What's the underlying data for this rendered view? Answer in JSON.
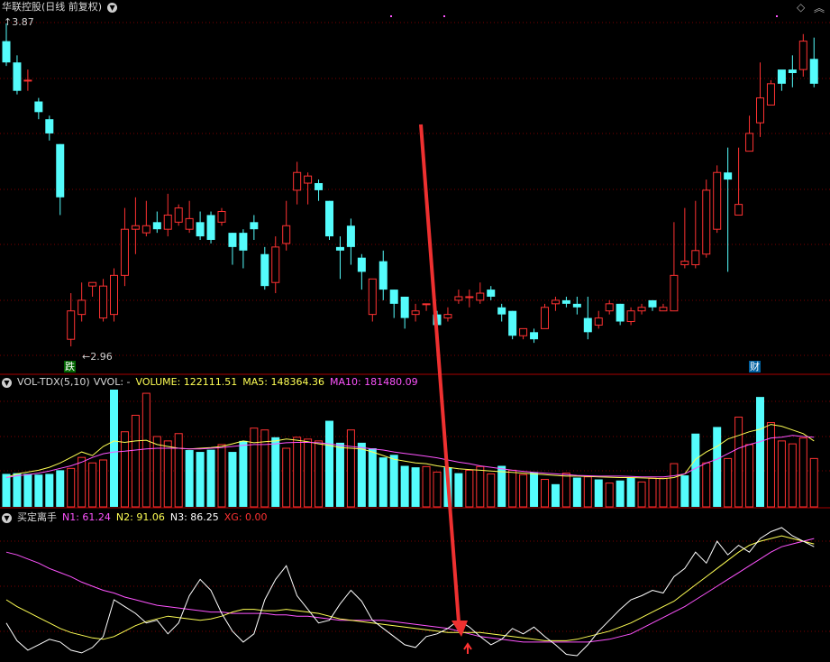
{
  "main": {
    "title": "华联控股(日线 前复权)",
    "high_label": "3.87",
    "low_label": "2.96",
    "badge_left": "跌",
    "badge_right": "财",
    "candles": [
      [
        3.82,
        3.76,
        3.87,
        3.75
      ],
      [
        3.76,
        3.68,
        3.78,
        3.67
      ],
      [
        3.71,
        3.71,
        3.74,
        3.68
      ],
      [
        3.65,
        3.62,
        3.66,
        3.6
      ],
      [
        3.6,
        3.56,
        3.61,
        3.54
      ],
      [
        3.53,
        3.38,
        3.53,
        3.33
      ],
      [
        2.98,
        3.06,
        3.11,
        2.96
      ],
      [
        3.05,
        3.09,
        3.14,
        3.03
      ],
      [
        3.13,
        3.14,
        3.14,
        3.1
      ],
      [
        3.04,
        3.13,
        3.15,
        3.03
      ],
      [
        3.05,
        3.16,
        3.18,
        3.03
      ],
      [
        3.16,
        3.29,
        3.35,
        3.13
      ],
      [
        3.29,
        3.3,
        3.38,
        3.22
      ],
      [
        3.28,
        3.3,
        3.37,
        3.27
      ],
      [
        3.31,
        3.29,
        3.34,
        3.28
      ],
      [
        3.29,
        3.33,
        3.39,
        3.27
      ],
      [
        3.31,
        3.35,
        3.36,
        3.3
      ],
      [
        3.29,
        3.32,
        3.37,
        3.28
      ],
      [
        3.31,
        3.27,
        3.34,
        3.26
      ],
      [
        3.33,
        3.26,
        3.34,
        3.25
      ],
      [
        3.31,
        3.34,
        3.35,
        3.3
      ],
      [
        3.28,
        3.24,
        3.28,
        3.19
      ],
      [
        3.28,
        3.23,
        3.29,
        3.18
      ],
      [
        3.31,
        3.29,
        3.33,
        3.26
      ],
      [
        3.22,
        3.13,
        3.24,
        3.12
      ],
      [
        3.14,
        3.24,
        3.27,
        3.11
      ],
      [
        3.25,
        3.3,
        3.37,
        3.23
      ],
      [
        3.4,
        3.45,
        3.48,
        3.36
      ],
      [
        3.42,
        3.44,
        3.45,
        3.36
      ],
      [
        3.42,
        3.4,
        3.43,
        3.37
      ],
      [
        3.37,
        3.27,
        3.37,
        3.26
      ],
      [
        3.24,
        3.23,
        3.27,
        3.15
      ],
      [
        3.3,
        3.24,
        3.32,
        3.19
      ],
      [
        3.21,
        3.17,
        3.22,
        3.12
      ],
      [
        3.05,
        3.15,
        3.15,
        3.03
      ],
      [
        3.2,
        3.12,
        3.23,
        3.09
      ],
      [
        3.12,
        3.08,
        3.12,
        3.04
      ],
      [
        3.1,
        3.04,
        3.1,
        3.01
      ],
      [
        3.05,
        3.06,
        3.08,
        3.03
      ],
      [
        3.08,
        3.08,
        3.08,
        3.06
      ],
      [
        3.05,
        3.02,
        3.06,
        2.97
      ],
      [
        3.04,
        3.05,
        3.07,
        3.03
      ],
      [
        3.09,
        3.1,
        3.12,
        3.08
      ],
      [
        3.1,
        3.1,
        3.12,
        3.07
      ],
      [
        3.09,
        3.11,
        3.14,
        3.08
      ],
      [
        3.12,
        3.1,
        3.13,
        3.09
      ],
      [
        3.07,
        3.05,
        3.08,
        3.03
      ],
      [
        3.06,
        2.99,
        3.06,
        2.98
      ],
      [
        2.99,
        3.01,
        3.01,
        2.98
      ],
      [
        3.0,
        2.98,
        3.01,
        2.97
      ],
      [
        3.01,
        3.07,
        3.08,
        3.01
      ],
      [
        3.08,
        3.09,
        3.1,
        3.06
      ],
      [
        3.09,
        3.08,
        3.1,
        3.07
      ],
      [
        3.08,
        3.07,
        3.1,
        3.05
      ],
      [
        3.04,
        3.0,
        3.1,
        2.98
      ],
      [
        3.02,
        3.04,
        3.06,
        3.01
      ],
      [
        3.06,
        3.08,
        3.09,
        3.05
      ],
      [
        3.08,
        3.03,
        3.08,
        3.02
      ],
      [
        3.03,
        3.06,
        3.07,
        3.02
      ],
      [
        3.06,
        3.07,
        3.08,
        3.05
      ],
      [
        3.09,
        3.07,
        3.09,
        3.06
      ],
      [
        3.06,
        3.07,
        3.08,
        3.06
      ],
      [
        3.06,
        3.16,
        3.31,
        3.06
      ],
      [
        3.19,
        3.2,
        3.35,
        3.18
      ],
      [
        3.19,
        3.23,
        3.37,
        3.18
      ],
      [
        3.22,
        3.4,
        3.43,
        3.21
      ],
      [
        3.29,
        3.45,
        3.47,
        3.28
      ],
      [
        3.45,
        3.43,
        3.52,
        3.17
      ],
      [
        3.33,
        3.36,
        3.52,
        3.33
      ],
      [
        3.51,
        3.56,
        3.61,
        3.51
      ],
      [
        3.59,
        3.66,
        3.76,
        3.55
      ],
      [
        3.64,
        3.7,
        3.71,
        3.65
      ],
      [
        3.74,
        3.7,
        3.73,
        3.68
      ],
      [
        3.74,
        3.73,
        3.78,
        3.69
      ],
      [
        3.74,
        3.82,
        3.84,
        3.72
      ],
      [
        3.77,
        3.7,
        3.83,
        3.69
      ]
    ]
  },
  "vol": {
    "indicator": "VOL-TDX(5,10)",
    "vvol": "VVOL: -",
    "volume_label": "VOLUME: 122111.51",
    "ma5_label": "MA5: 148364.36",
    "ma10_label": "MA10: 181480.09",
    "bars": [
      [
        90,
        0
      ],
      [
        92,
        0
      ],
      [
        90,
        0
      ],
      [
        88,
        0
      ],
      [
        90,
        0
      ],
      [
        100,
        0
      ],
      [
        105,
        1
      ],
      [
        135,
        1
      ],
      [
        120,
        1
      ],
      [
        128,
        1
      ],
      [
        320,
        0
      ],
      [
        205,
        1
      ],
      [
        250,
        1
      ],
      [
        310,
        1
      ],
      [
        192,
        1
      ],
      [
        180,
        1
      ],
      [
        200,
        1
      ],
      [
        155,
        0
      ],
      [
        150,
        0
      ],
      [
        156,
        0
      ],
      [
        170,
        1
      ],
      [
        150,
        0
      ],
      [
        180,
        0
      ],
      [
        215,
        1
      ],
      [
        210,
        1
      ],
      [
        190,
        0
      ],
      [
        160,
        1
      ],
      [
        190,
        1
      ],
      [
        185,
        1
      ],
      [
        180,
        1
      ],
      [
        235,
        0
      ],
      [
        175,
        0
      ],
      [
        210,
        1
      ],
      [
        175,
        0
      ],
      [
        160,
        0
      ],
      [
        135,
        0
      ],
      [
        142,
        0
      ],
      [
        112,
        0
      ],
      [
        108,
        0
      ],
      [
        110,
        1
      ],
      [
        95,
        1
      ],
      [
        108,
        0
      ],
      [
        92,
        0
      ],
      [
        100,
        1
      ],
      [
        110,
        1
      ],
      [
        90,
        1
      ],
      [
        112,
        0
      ],
      [
        100,
        1
      ],
      [
        88,
        1
      ],
      [
        95,
        0
      ],
      [
        75,
        1
      ],
      [
        62,
        0
      ],
      [
        92,
        1
      ],
      [
        80,
        0
      ],
      [
        82,
        1
      ],
      [
        75,
        0
      ],
      [
        65,
        1
      ],
      [
        72,
        0
      ],
      [
        80,
        0
      ],
      [
        68,
        1
      ],
      [
        78,
        1
      ],
      [
        78,
        1
      ],
      [
        118,
        1
      ],
      [
        86,
        0
      ],
      [
        200,
        0
      ],
      [
        120,
        1
      ],
      [
        218,
        0
      ],
      [
        132,
        1
      ],
      [
        245,
        1
      ],
      [
        170,
        1
      ],
      [
        300,
        0
      ],
      [
        230,
        1
      ],
      [
        180,
        1
      ],
      [
        172,
        1
      ],
      [
        188,
        1
      ],
      [
        132,
        1
      ]
    ],
    "ma5": [
      80,
      90,
      95,
      100,
      108,
      120,
      135,
      150,
      140,
      165,
      180,
      176,
      180,
      182,
      170,
      165,
      160,
      158,
      160,
      162,
      165,
      172,
      180,
      175,
      178,
      180,
      185,
      182,
      178,
      172,
      168,
      162,
      160,
      158,
      150,
      140,
      130,
      125,
      120,
      118,
      112,
      108,
      104,
      102,
      100,
      98,
      96,
      94,
      92,
      90,
      88,
      86,
      84,
      84,
      83,
      82,
      81,
      80,
      80,
      79,
      78,
      77,
      80,
      90,
      130,
      150,
      165,
      185,
      195,
      205,
      212,
      225,
      220,
      210,
      200,
      180
    ],
    "ma10": [
      80,
      85,
      88,
      92,
      98,
      105,
      112,
      122,
      135,
      145,
      150,
      152,
      155,
      158,
      160,
      160,
      160,
      158,
      158,
      160,
      162,
      165,
      168,
      170,
      170,
      172,
      175,
      176,
      176,
      175,
      172,
      168,
      165,
      162,
      158,
      155,
      150,
      146,
      142,
      138,
      134,
      128,
      122,
      118,
      112,
      108,
      104,
      100,
      97,
      94,
      92,
      90,
      88,
      86,
      85,
      84,
      84,
      84,
      83,
      82,
      82,
      82,
      85,
      90,
      105,
      120,
      130,
      145,
      160,
      170,
      178,
      188,
      190,
      195,
      192,
      190
    ]
  },
  "ind": {
    "name": "买定离手",
    "n1": "N1: 61.24",
    "n2": "N2: 91.06",
    "n3": "N3: 86.25",
    "xg": "XG: 0.00",
    "white": [
      28,
      15,
      8,
      12,
      16,
      14,
      8,
      6,
      10,
      18,
      45,
      40,
      35,
      28,
      30,
      20,
      28,
      48,
      60,
      52,
      35,
      22,
      14,
      20,
      45,
      60,
      70,
      48,
      38,
      28,
      30,
      42,
      52,
      44,
      30,
      24,
      18,
      12,
      10,
      18,
      20,
      24,
      30,
      25,
      18,
      12,
      16,
      24,
      20,
      25,
      18,
      12,
      5,
      4,
      12,
      22,
      30,
      38,
      45,
      48,
      52,
      50,
      62,
      68,
      80,
      72,
      88,
      78,
      85,
      80,
      90,
      95,
      98,
      92,
      88,
      84
    ],
    "yellow": [
      45,
      40,
      36,
      32,
      28,
      24,
      21,
      19,
      17,
      16,
      18,
      22,
      26,
      29,
      31,
      33,
      32,
      31,
      30,
      31,
      33,
      36,
      38,
      38,
      37,
      37,
      38,
      37,
      36,
      35,
      33,
      31,
      30,
      29,
      28,
      27,
      26,
      25,
      24,
      23,
      22,
      21,
      21,
      21,
      21,
      20,
      19,
      18,
      17,
      16,
      15,
      15,
      15,
      16,
      18,
      20,
      22,
      25,
      28,
      32,
      36,
      40,
      44,
      50,
      56,
      62,
      68,
      74,
      80,
      85,
      88,
      90,
      92,
      90,
      88,
      86
    ],
    "magenta": [
      80,
      78,
      75,
      72,
      68,
      65,
      62,
      58,
      55,
      52,
      50,
      47,
      45,
      43,
      41,
      40,
      39,
      38,
      37,
      36,
      36,
      35,
      35,
      35,
      35,
      34,
      34,
      33,
      33,
      32,
      31,
      30,
      30,
      30,
      30,
      30,
      29,
      28,
      27,
      26,
      25,
      24,
      22,
      20,
      18,
      17,
      16,
      15,
      14,
      14,
      14,
      14,
      14,
      14,
      14,
      15,
      16,
      18,
      20,
      24,
      28,
      32,
      36,
      40,
      45,
      50,
      55,
      60,
      65,
      70,
      75,
      80,
      84,
      86,
      88,
      90
    ]
  },
  "colors": {
    "up": "#ff3232",
    "down": "#54fcfc",
    "grid": "#7a0000",
    "axis": "#aa0000",
    "yellow": "#ffff54",
    "magenta": "#ff54ff",
    "white": "#ffffff",
    "arrow": "#ee3030"
  }
}
